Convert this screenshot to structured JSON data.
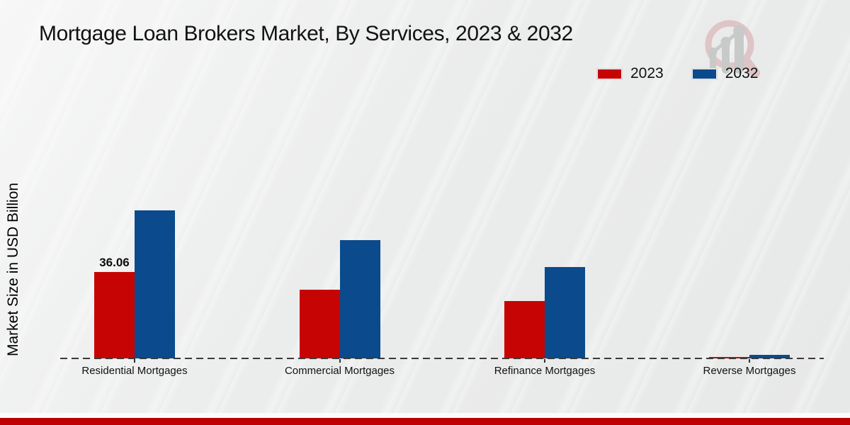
{
  "title": "Mortgage Loan Brokers Market, By Services, 2023 & 2032",
  "y_axis_label": "Market Size in USD Billion",
  "logo": {
    "name": "magnifier-growth-chart-logo"
  },
  "footer_accent_color": "#bd0101",
  "chart_data": {
    "type": "bar",
    "categories": [
      "Residential Mortgages",
      "Commercial Mortgages",
      "Refinance Mortgages",
      "Reverse Mortgages"
    ],
    "series": [
      {
        "name": "2023",
        "color": "#c70404",
        "values": [
          36.06,
          28.8,
          24.0,
          0.55
        ]
      },
      {
        "name": "2032",
        "color": "#0b4a8c",
        "values": [
          61.85,
          49.3,
          38.2,
          1.5
        ]
      }
    ],
    "annotations": [
      {
        "series": "2023",
        "category": "Residential Mortgages",
        "text": "36.06"
      }
    ],
    "title": "Mortgage Loan Brokers Market, By Services, 2023 & 2032",
    "xlabel": "",
    "ylabel": "Market Size in USD Billion",
    "ylim": [
      0,
      65
    ],
    "grid": false,
    "legend_position": "top-right",
    "baseline_style": "dashed"
  }
}
